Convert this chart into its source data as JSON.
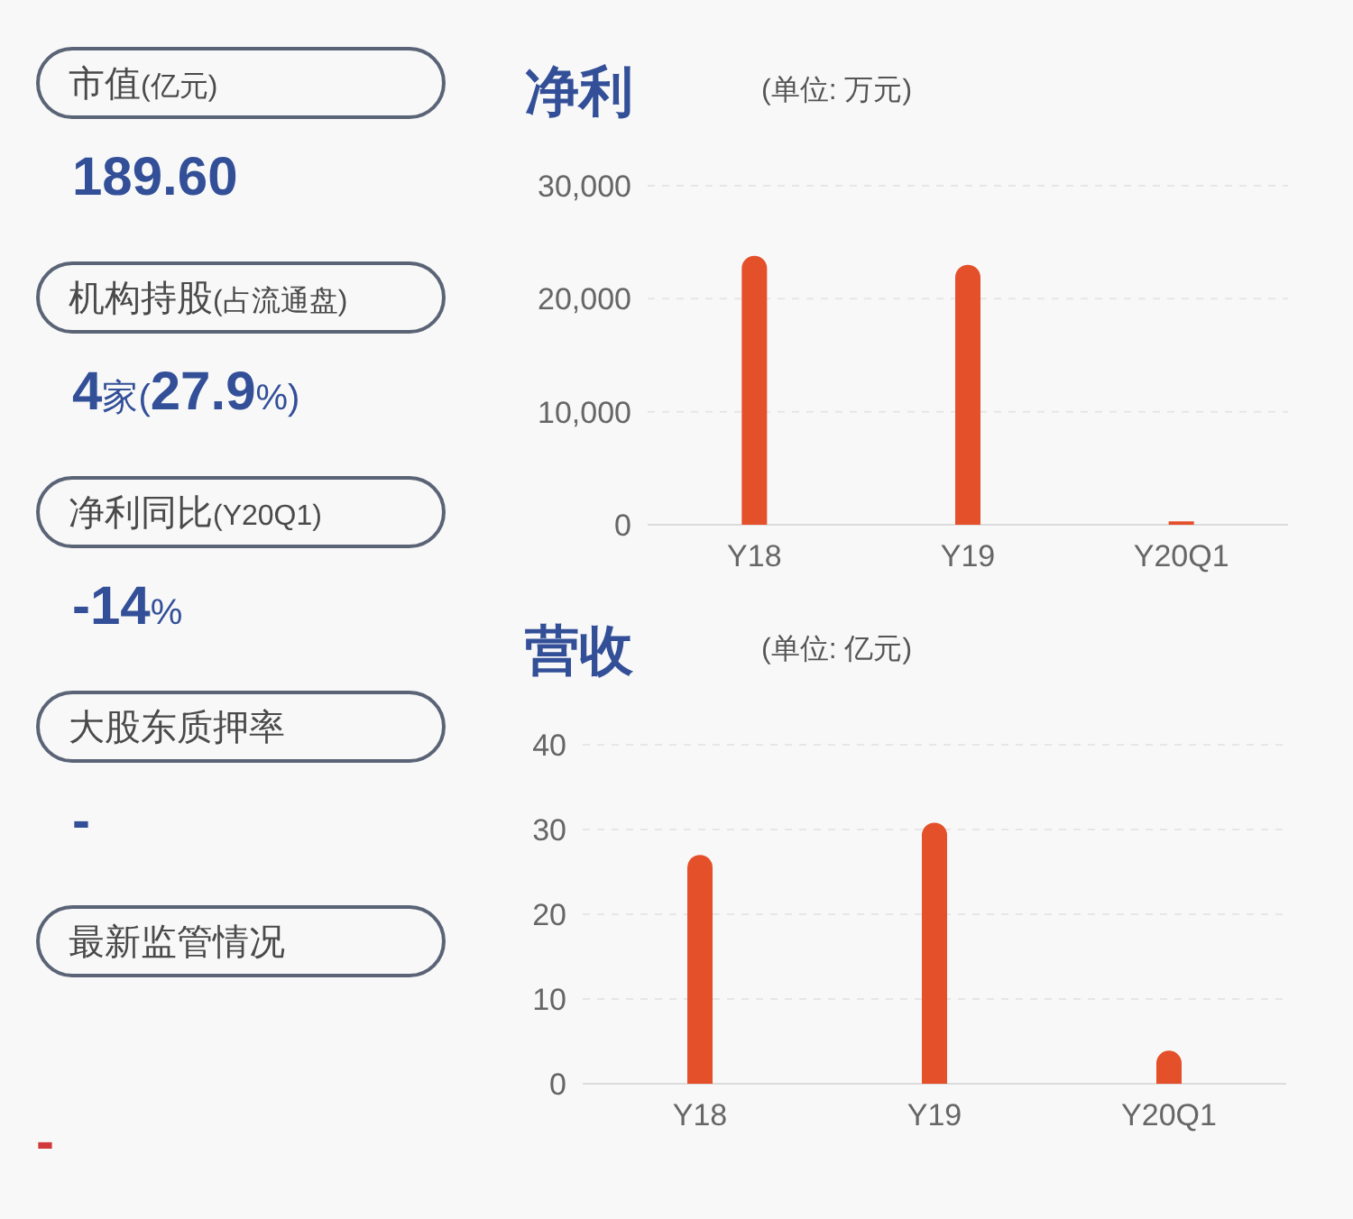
{
  "chart_data": [
    {
      "type": "other",
      "annotations": [
        "市值(亿元)",
        "189.60",
        "机构持股(占流通盘)",
        "4家(27.9%)",
        "净利同比(Y20Q1)",
        "-14%",
        "大股东质押率",
        "-",
        "最新监管情况",
        "-"
      ]
    },
    {
      "type": "bar",
      "title": "净利",
      "subtitle": "(单位: 万元)",
      "categories": [
        "Y18",
        "Y19",
        "Y20Q1"
      ],
      "values": [
        23800,
        23000,
        300
      ],
      "color": "#e4502a",
      "ylim": [
        0,
        30000
      ],
      "yticks": [
        {
          "value": 0,
          "label": "0"
        },
        {
          "value": 10000,
          "label": "10,000"
        },
        {
          "value": 20000,
          "label": "20,000"
        },
        {
          "value": 30000,
          "label": "30,000"
        }
      ],
      "grid": "y"
    },
    {
      "type": "bar",
      "title": "营收",
      "subtitle": "(单位: 亿元)",
      "categories": [
        "Y18",
        "Y19",
        "Y20Q1"
      ],
      "values": [
        27,
        30.8,
        3.9
      ],
      "color": "#e4502a",
      "ylim": [
        0,
        40
      ],
      "yticks": [
        0,
        10,
        20,
        30,
        40
      ],
      "grid": "y"
    }
  ]
}
